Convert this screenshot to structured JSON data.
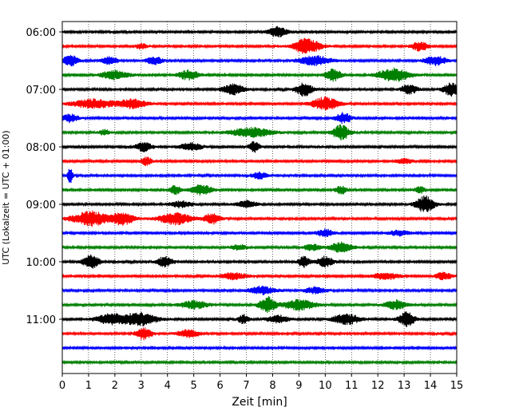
{
  "chart_data": {
    "type": "line",
    "title": "",
    "xlabel": "Zeit  [min]",
    "ylabel": "UTC (Lokalzeit = UTC + 01:00)",
    "xlim": [
      0,
      15
    ],
    "x_ticks": [
      "0",
      "1",
      "2",
      "3",
      "4",
      "5",
      "6",
      "7",
      "8",
      "9",
      "10",
      "11",
      "12",
      "13",
      "14",
      "15"
    ],
    "y_ticks": [
      "06:00",
      "07:00",
      "08:00",
      "09:00",
      "10:00",
      "11:00"
    ],
    "grid": "vertical dotted lines at each minute",
    "trace_interval_minutes": 15,
    "start_time": "06:00",
    "colors": [
      "#000000",
      "#ff0000",
      "#0000ff",
      "#008000"
    ],
    "traces": [
      {
        "start": "06:00",
        "color": "#000000",
        "bursts": [
          [
            8.2,
            0.35,
            1.6
          ]
        ]
      },
      {
        "start": "06:15",
        "color": "#ff0000",
        "bursts": [
          [
            9.3,
            0.5,
            2.4
          ],
          [
            13.6,
            0.3,
            1.4
          ],
          [
            3.0,
            0.2,
            0.8
          ]
        ]
      },
      {
        "start": "06:30",
        "color": "#0000ff",
        "bursts": [
          [
            0.3,
            0.3,
            1.6
          ],
          [
            1.8,
            0.3,
            1.2
          ],
          [
            3.5,
            0.3,
            1.2
          ],
          [
            9.6,
            0.6,
            1.4
          ],
          [
            14.2,
            0.4,
            1.4
          ]
        ]
      },
      {
        "start": "06:45",
        "color": "#008000",
        "bursts": [
          [
            2.0,
            0.5,
            1.4
          ],
          [
            4.8,
            0.4,
            1.4
          ],
          [
            10.3,
            0.3,
            2.0
          ],
          [
            12.6,
            0.6,
            2.0
          ]
        ]
      },
      {
        "start": "07:00",
        "color": "#000000",
        "bursts": [
          [
            6.5,
            0.4,
            1.6
          ],
          [
            9.2,
            0.3,
            2.2
          ],
          [
            13.2,
            0.3,
            1.4
          ],
          [
            14.8,
            0.3,
            2.0
          ]
        ]
      },
      {
        "start": "07:15",
        "color": "#ff0000",
        "bursts": [
          [
            1.2,
            0.8,
            1.4
          ],
          [
            2.7,
            0.5,
            1.4
          ],
          [
            10.0,
            0.5,
            2.0
          ]
        ]
      },
      {
        "start": "07:30",
        "color": "#0000ff",
        "bursts": [
          [
            0.3,
            0.3,
            1.2
          ],
          [
            10.7,
            0.3,
            1.6
          ]
        ]
      },
      {
        "start": "07:45",
        "color": "#008000",
        "bursts": [
          [
            7.2,
            0.8,
            1.4
          ],
          [
            10.6,
            0.3,
            2.4
          ],
          [
            1.6,
            0.2,
            0.8
          ]
        ]
      },
      {
        "start": "08:00",
        "color": "#000000",
        "bursts": [
          [
            3.1,
            0.3,
            1.4
          ],
          [
            4.9,
            0.4,
            1.2
          ],
          [
            7.3,
            0.2,
            1.6
          ]
        ]
      },
      {
        "start": "08:15",
        "color": "#ff0000",
        "bursts": [
          [
            3.2,
            0.2,
            1.2
          ],
          [
            13.0,
            0.3,
            0.8
          ]
        ]
      },
      {
        "start": "08:30",
        "color": "#0000ff",
        "bursts": [
          [
            0.3,
            0.1,
            2.2
          ],
          [
            7.5,
            0.3,
            1.0
          ]
        ]
      },
      {
        "start": "08:45",
        "color": "#008000",
        "bursts": [
          [
            4.3,
            0.2,
            1.4
          ],
          [
            5.3,
            0.4,
            1.6
          ],
          [
            10.6,
            0.2,
            1.4
          ],
          [
            13.6,
            0.2,
            1.0
          ]
        ]
      },
      {
        "start": "09:00",
        "color": "#000000",
        "bursts": [
          [
            13.8,
            0.35,
            2.6
          ],
          [
            4.5,
            0.4,
            1.0
          ],
          [
            7.0,
            0.4,
            1.0
          ]
        ]
      },
      {
        "start": "09:15",
        "color": "#ff0000",
        "bursts": [
          [
            1.1,
            0.7,
            2.2
          ],
          [
            2.3,
            0.4,
            2.0
          ],
          [
            4.3,
            0.6,
            1.8
          ],
          [
            5.7,
            0.3,
            1.6
          ]
        ]
      },
      {
        "start": "09:30",
        "color": "#0000ff",
        "bursts": [
          [
            10.0,
            0.3,
            1.2
          ],
          [
            12.8,
            0.4,
            0.8
          ]
        ]
      },
      {
        "start": "09:45",
        "color": "#008000",
        "bursts": [
          [
            10.6,
            0.4,
            1.6
          ],
          [
            9.5,
            0.3,
            1.0
          ],
          [
            6.7,
            0.3,
            0.8
          ]
        ]
      },
      {
        "start": "10:00",
        "color": "#000000",
        "bursts": [
          [
            1.1,
            0.3,
            2.0
          ],
          [
            3.9,
            0.3,
            1.6
          ],
          [
            9.2,
            0.2,
            1.8
          ],
          [
            10.0,
            0.3,
            1.6
          ]
        ]
      },
      {
        "start": "10:15",
        "color": "#ff0000",
        "bursts": [
          [
            6.5,
            0.5,
            1.0
          ],
          [
            12.3,
            0.5,
            1.0
          ],
          [
            14.5,
            0.3,
            1.2
          ]
        ]
      },
      {
        "start": "10:30",
        "color": "#0000ff",
        "bursts": [
          [
            7.6,
            0.5,
            1.2
          ],
          [
            9.6,
            0.4,
            1.0
          ]
        ]
      },
      {
        "start": "10:45",
        "color": "#008000",
        "bursts": [
          [
            7.8,
            0.3,
            2.4
          ],
          [
            9.0,
            0.6,
            1.6
          ],
          [
            12.7,
            0.4,
            1.4
          ],
          [
            5.0,
            0.5,
            1.2
          ]
        ]
      },
      {
        "start": "11:00",
        "color": "#000000",
        "bursts": [
          [
            1.9,
            0.6,
            1.6
          ],
          [
            3.0,
            0.6,
            1.8
          ],
          [
            6.9,
            0.2,
            1.4
          ],
          [
            10.8,
            0.5,
            1.6
          ],
          [
            13.1,
            0.3,
            2.2
          ],
          [
            8.2,
            0.4,
            1.2
          ]
        ]
      },
      {
        "start": "11:15",
        "color": "#ff0000",
        "bursts": [
          [
            3.1,
            0.3,
            1.8
          ],
          [
            4.8,
            0.4,
            1.2
          ]
        ]
      },
      {
        "start": "11:30",
        "color": "#0000ff",
        "bursts": []
      },
      {
        "start": "11:45",
        "color": "#008000",
        "bursts": []
      }
    ]
  }
}
